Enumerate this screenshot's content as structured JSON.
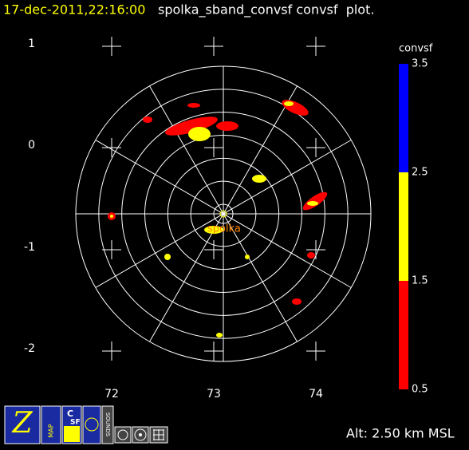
{
  "header": {
    "timestamp": "17-dec-2011,22:16:00",
    "title": "spolka_sband_convsf convsf  plot."
  },
  "plot": {
    "radar": "spolka",
    "x_labels": [
      "72",
      "73",
      "74"
    ],
    "y_labels": [
      "1",
      "0",
      "-1",
      "-2"
    ]
  },
  "colorbar": {
    "title": "convsf",
    "colors": [
      "#0000ff",
      "#ffff00",
      "#ff0000"
    ],
    "labels": [
      "3.5",
      "2.5",
      "1.5",
      "0.5"
    ]
  },
  "toolbar": {
    "buttons": [
      "Z",
      "MAP",
      "C",
      "SF",
      "SOUNDS"
    ]
  },
  "footer": {
    "altitude": "Alt: 2.50 km MSL"
  }
}
